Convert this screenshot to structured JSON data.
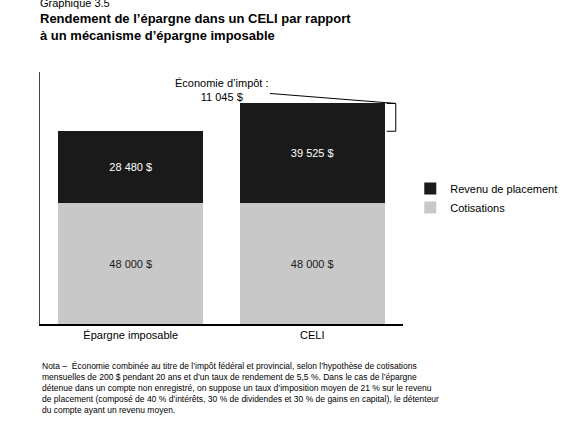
{
  "chart_data": {
    "type": "bar",
    "stacked": true,
    "subtitle": "Graphique 3.5",
    "title": "Rendement de l’épargne dans un CELI par rapport\nà un mécanisme d’épargne imposable",
    "categories": [
      "Épargne imposable",
      "CELI"
    ],
    "series": [
      {
        "name": "Cotisations",
        "color": "#c8c8c8",
        "values": [
          48000,
          48000
        ],
        "value_labels": [
          "48 000 $",
          "48 000 $"
        ]
      },
      {
        "name": "Revenu de placement",
        "color": "#1a1a1a",
        "values": [
          28480,
          39525
        ],
        "value_labels": [
          "28 480 $",
          "39 525 $"
        ]
      }
    ],
    "data_labels": true,
    "ylim": [
      0,
      100000
    ],
    "tick_labels": "x",
    "grid": false,
    "legend": "right",
    "annotations": [
      "Économie d’impôt :\n11 045 $"
    ],
    "note": "Nota –  Économie combinée au titre de l’impôt fédéral et provincial, selon l’hypothèse de cotisations\nmensuelles de 200 $ pendant 20 ans et d’un taux de rendement de 5,5 %. Dans le cas de l’épargne\ndétenue dans un compte non enregistré, on suppose un taux d’imposition moyen de 21 % sur le revenu\nde placement (composé de 40 % d’intérêts, 30 % de dividendes et 30 % de gains en capital), le détenteur\ndu compte ayant un revenu moyen."
  }
}
